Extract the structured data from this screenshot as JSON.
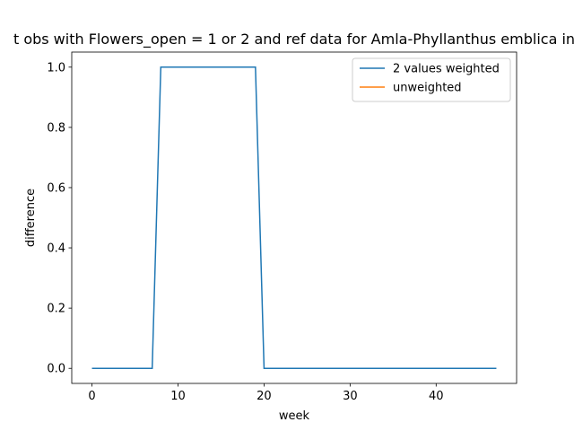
{
  "chart_data": {
    "type": "line",
    "title": "t obs with Flowers_open = 1 or 2 and ref data for Amla-Phyllanthus emblica in",
    "xlabel": "week",
    "ylabel": "difference",
    "xlim": [
      -2.35,
      49.35
    ],
    "ylim": [
      -0.05,
      1.05
    ],
    "xticks": [
      0,
      10,
      20,
      30,
      40
    ],
    "xtick_labels": [
      "0",
      "10",
      "20",
      "30",
      "40"
    ],
    "yticks": [
      0.0,
      0.2,
      0.4,
      0.6,
      0.8,
      1.0
    ],
    "ytick_labels": [
      "0.0",
      "0.2",
      "0.4",
      "0.6",
      "0.8",
      "1.0"
    ],
    "grid": false,
    "legend_position": "top-right",
    "series": [
      {
        "name": "2 values weighted",
        "color": "#1f77b4",
        "x": [
          0,
          7,
          8,
          19,
          20,
          47
        ],
        "y": [
          0,
          0,
          1,
          1,
          0,
          0
        ]
      },
      {
        "name": "unweighted",
        "color": "#ff7f0e",
        "x": [],
        "y": []
      }
    ]
  }
}
